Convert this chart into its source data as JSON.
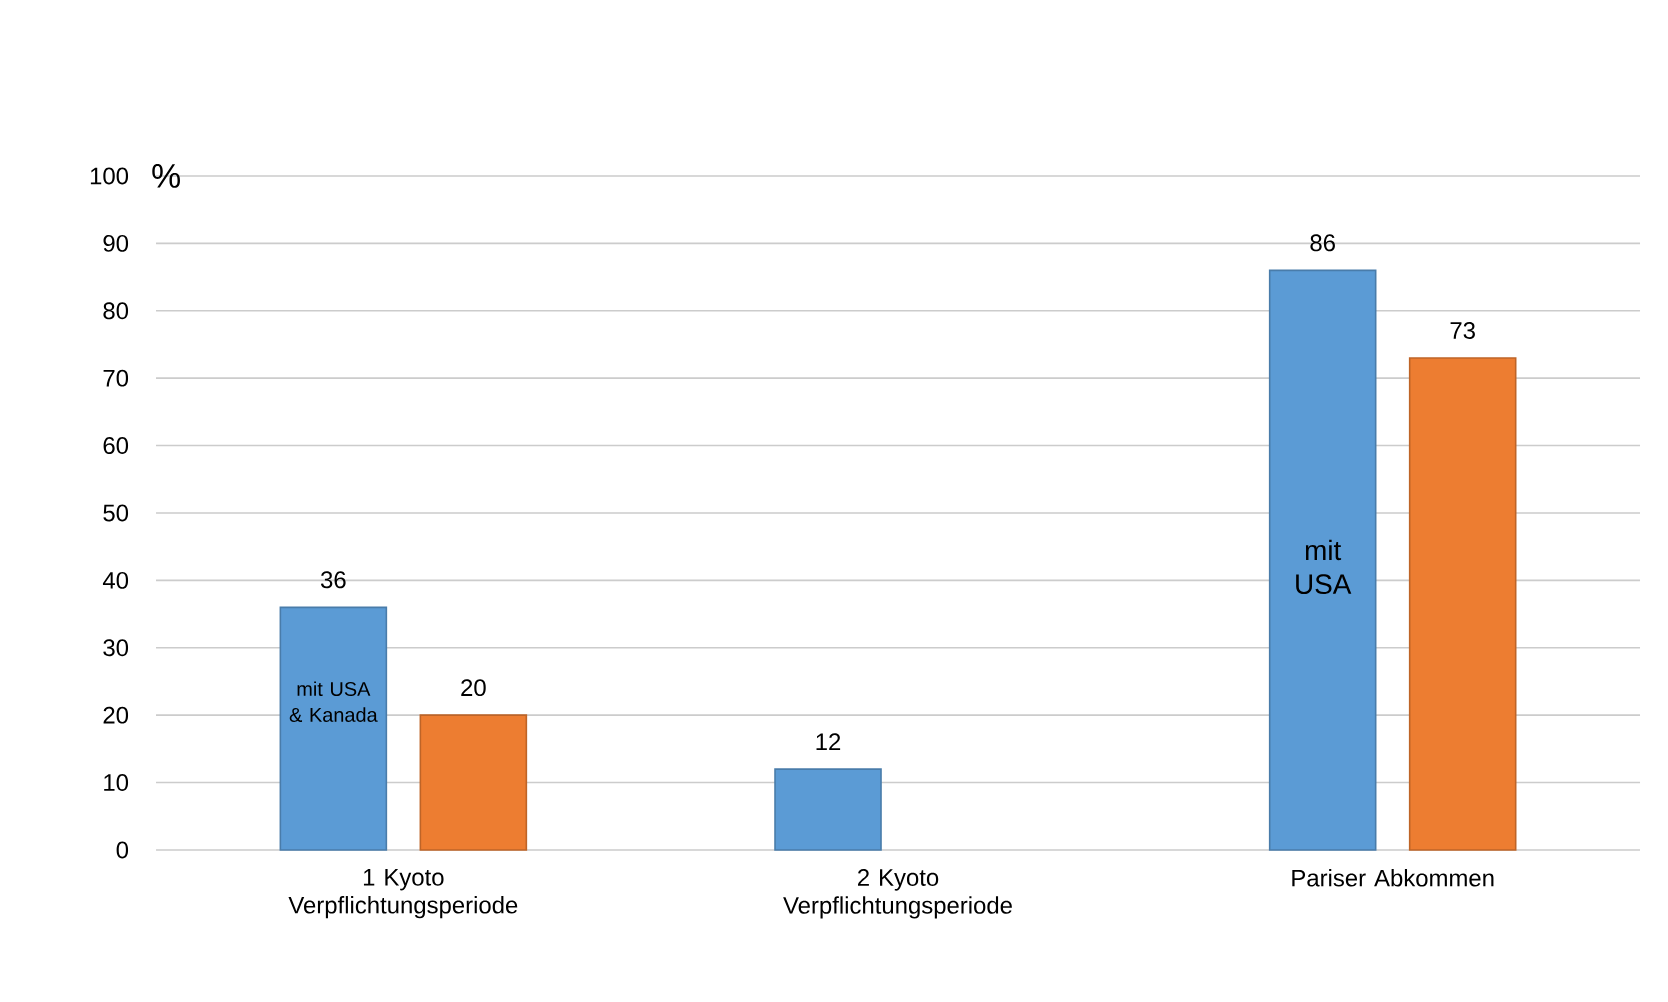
{
  "chart_data": {
    "type": "bar",
    "ylabel": "%",
    "categories": [
      "1 Kyoto Verpflichtungsperiode",
      "2 Kyoto Verpflichtungsperiode",
      "Pariser Abkommen"
    ],
    "series": [
      {
        "color": "#5b9bd5",
        "values": [
          36,
          12,
          86
        ]
      },
      {
        "color": "#ed7d31",
        "values": [
          20,
          null,
          73
        ]
      }
    ],
    "ylim": [
      0,
      100
    ],
    "yticks": [
      0,
      10,
      20,
      30,
      40,
      50,
      60,
      70,
      80,
      90,
      100
    ],
    "grid": "y",
    "data_labels": true,
    "annotations": [
      "mit USA & Kanada",
      "mit USA"
    ]
  }
}
